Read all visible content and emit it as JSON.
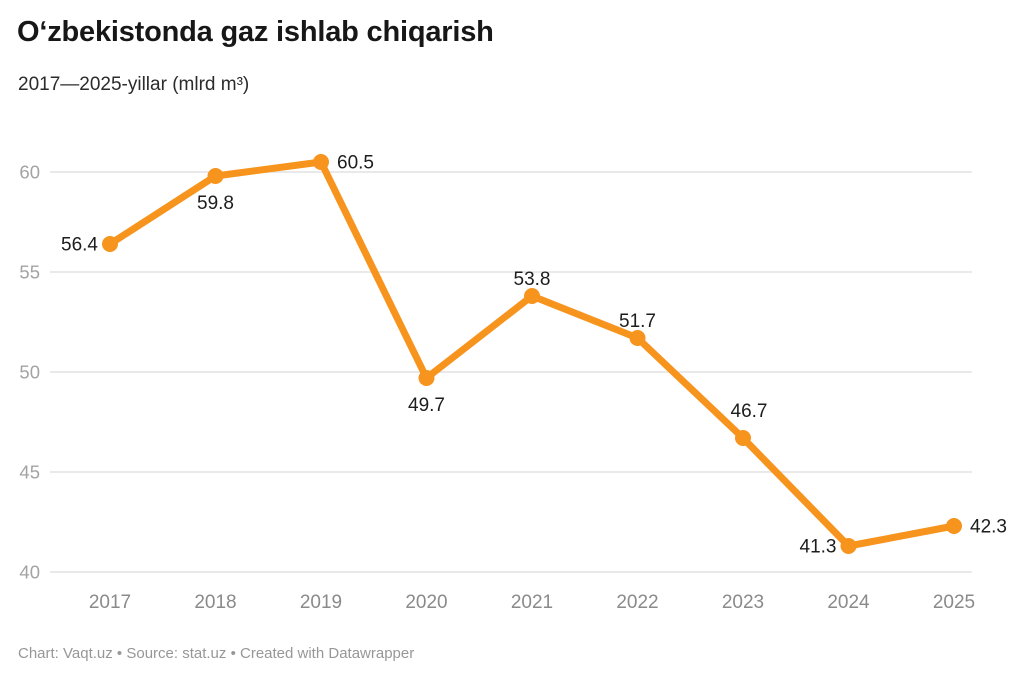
{
  "chart_data": {
    "type": "line",
    "title": "Oʻzbekistonda gaz ishlab chiqarish",
    "subtitle": "2017—2025-yillar (mlrd m³)",
    "unit": "mlrd m³",
    "categories": [
      "2017",
      "2018",
      "2019",
      "2020",
      "2021",
      "2022",
      "2023",
      "2024",
      "2025"
    ],
    "values": [
      56.4,
      59.8,
      60.5,
      49.7,
      53.8,
      51.7,
      46.7,
      41.3,
      42.3
    ],
    "y_ticks": [
      40,
      45,
      50,
      55,
      60
    ],
    "ylim": [
      40,
      62
    ],
    "grid": "horizontal",
    "legend": "none",
    "data_labels": true,
    "label_positions": [
      "left",
      "below",
      "right",
      "below",
      "above",
      "above",
      "above-far",
      "left",
      "right"
    ],
    "colors": {
      "line": "#f7941d",
      "grid": "#e2e2e2",
      "y_axis_text": "#a3a3a3",
      "x_axis_text": "#8a8a8a",
      "data_label": "#1d1d1d"
    }
  },
  "footer": {
    "attribution": "Chart: Vaqt.uz • Source: stat.uz • Created with Datawrapper"
  }
}
